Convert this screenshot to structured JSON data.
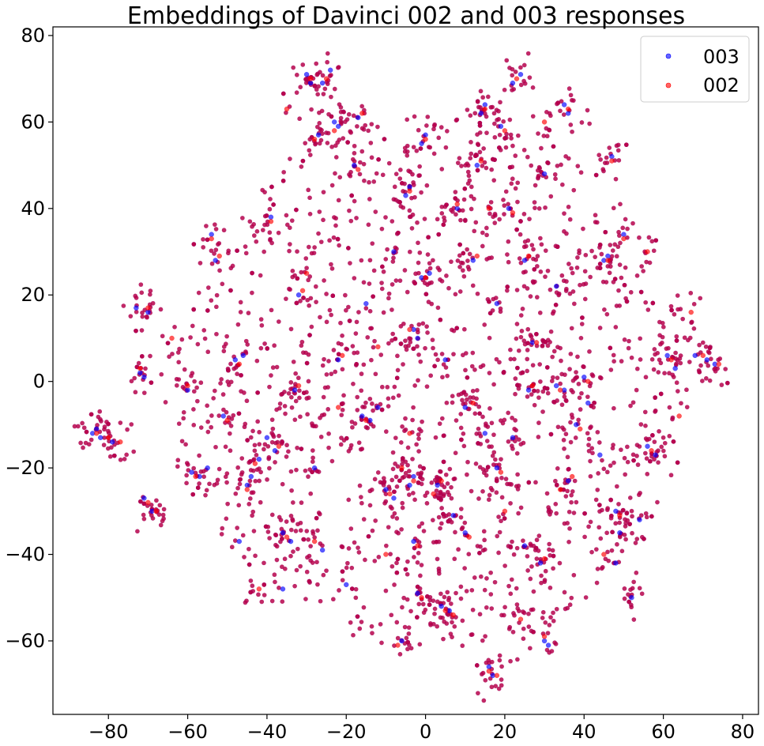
{
  "chart_data": {
    "type": "scatter",
    "title": "Embeddings of Davinci 002 and 003 responses",
    "xlabel": "",
    "ylabel": "",
    "xlim": [
      -94,
      84
    ],
    "ylim": [
      -77,
      82
    ],
    "xticks": [
      -80,
      -60,
      -40,
      -20,
      0,
      20,
      40,
      60,
      80
    ],
    "xtick_labels": [
      "−80",
      "−60",
      "−40",
      "−20",
      "0",
      "20",
      "40",
      "60",
      "80"
    ],
    "yticks": [
      -60,
      -40,
      -20,
      0,
      20,
      40,
      60,
      80
    ],
    "ytick_labels": [
      "−60",
      "−40",
      "−20",
      "0",
      "20",
      "40",
      "60",
      "80"
    ],
    "grid": false,
    "legend_placement": "top-right",
    "series": [
      {
        "name": "003",
        "color": "#0000ff",
        "points": [
          [
            -84,
            -12
          ],
          [
            -83,
            -11
          ],
          [
            -82,
            -13
          ],
          [
            -79,
            -14
          ],
          [
            -72,
            2
          ],
          [
            -71,
            1
          ],
          [
            -73,
            17
          ],
          [
            -70,
            16
          ],
          [
            -71,
            -27
          ],
          [
            -69,
            -30
          ],
          [
            -59,
            -21
          ],
          [
            -57,
            -22
          ],
          [
            -54,
            34
          ],
          [
            -53,
            28
          ],
          [
            -51,
            -8
          ],
          [
            -48,
            5
          ],
          [
            -46,
            6
          ],
          [
            -45,
            -24
          ],
          [
            -44,
            -22
          ],
          [
            -42,
            -18
          ],
          [
            -40,
            -13
          ],
          [
            -39,
            38
          ],
          [
            -38,
            -16
          ],
          [
            -36,
            -35
          ],
          [
            -34,
            -37
          ],
          [
            -33,
            -2
          ],
          [
            -32,
            20
          ],
          [
            -30,
            71
          ],
          [
            -29,
            69
          ],
          [
            -27,
            57
          ],
          [
            -26,
            69
          ],
          [
            -24,
            72
          ],
          [
            -23,
            60
          ],
          [
            -22,
            59
          ],
          [
            -22,
            5
          ],
          [
            -18,
            50
          ],
          [
            -17,
            61
          ],
          [
            -16,
            -8
          ],
          [
            -14,
            -9
          ],
          [
            -10,
            -25
          ],
          [
            -8,
            -27
          ],
          [
            -6,
            -60
          ],
          [
            -5,
            43
          ],
          [
            -4,
            45
          ],
          [
            -4,
            -24
          ],
          [
            -3,
            -22
          ],
          [
            -3,
            12
          ],
          [
            -2,
            10
          ],
          [
            -1,
            55
          ],
          [
            0,
            57
          ],
          [
            -1,
            24
          ],
          [
            1,
            25
          ],
          [
            -2,
            -49
          ],
          [
            -3,
            -37
          ],
          [
            3,
            -24
          ],
          [
            4,
            -52
          ],
          [
            6,
            -53
          ],
          [
            8,
            40
          ],
          [
            10,
            -35
          ],
          [
            12,
            28
          ],
          [
            13,
            50
          ],
          [
            14,
            62
          ],
          [
            15,
            64
          ],
          [
            16,
            -66
          ],
          [
            17,
            -68
          ],
          [
            18,
            -20
          ],
          [
            19,
            59
          ],
          [
            21,
            40
          ],
          [
            22,
            69
          ],
          [
            24,
            71
          ],
          [
            25,
            28
          ],
          [
            26,
            -2
          ],
          [
            27,
            9
          ],
          [
            29,
            -42
          ],
          [
            30,
            -60
          ],
          [
            31,
            -61
          ],
          [
            33,
            -1
          ],
          [
            35,
            -2
          ],
          [
            35,
            64
          ],
          [
            36,
            62
          ],
          [
            36,
            -23
          ],
          [
            38,
            -10
          ],
          [
            40,
            1
          ],
          [
            41,
            -5
          ],
          [
            45,
            28
          ],
          [
            46,
            29
          ],
          [
            47,
            52
          ],
          [
            48,
            -30
          ],
          [
            49,
            -35
          ],
          [
            50,
            34
          ],
          [
            56,
            -15
          ],
          [
            58,
            -17
          ],
          [
            61,
            6
          ],
          [
            63,
            3
          ],
          [
            68,
            6
          ],
          [
            71,
            5
          ],
          [
            73,
            4
          ],
          [
            -55,
            -20
          ],
          [
            -47,
            -37
          ],
          [
            -26,
            -39
          ],
          [
            -12,
            -6
          ],
          [
            7,
            -31
          ],
          [
            15,
            -12
          ],
          [
            22,
            -13
          ],
          [
            44,
            -17
          ],
          [
            52,
            -50
          ],
          [
            54,
            -32
          ],
          [
            33,
            22
          ],
          [
            18,
            18
          ],
          [
            -36,
            -48
          ],
          [
            -20,
            -47
          ],
          [
            30,
            48
          ],
          [
            5,
            5
          ],
          [
            -8,
            30
          ],
          [
            -28,
            -20
          ],
          [
            25,
            -38
          ],
          [
            10,
            -6
          ],
          [
            -15,
            18
          ],
          [
            48,
            -42
          ],
          [
            -60,
            -2
          ]
        ]
      },
      {
        "name": "002",
        "color": "#ff0000",
        "points": [
          [
            -83,
            -12
          ],
          [
            -80,
            -13
          ],
          [
            -77,
            -14
          ],
          [
            -72,
            3
          ],
          [
            -70,
            17
          ],
          [
            -70,
            -28
          ],
          [
            -68,
            -30
          ],
          [
            -60,
            -1
          ],
          [
            -58,
            -22
          ],
          [
            -54,
            33
          ],
          [
            -52,
            29
          ],
          [
            -50,
            -9
          ],
          [
            -47,
            4
          ],
          [
            -45,
            -25
          ],
          [
            -43,
            -19
          ],
          [
            -39,
            37
          ],
          [
            -37,
            -15
          ],
          [
            -35,
            -36
          ],
          [
            -32,
            -1
          ],
          [
            -31,
            21
          ],
          [
            -29,
            70
          ],
          [
            -28,
            56
          ],
          [
            -25,
            70
          ],
          [
            -23,
            58
          ],
          [
            -21,
            6
          ],
          [
            -17,
            49
          ],
          [
            -16,
            62
          ],
          [
            -15,
            -9
          ],
          [
            -9,
            -26
          ],
          [
            -7,
            -61
          ],
          [
            -4,
            44
          ],
          [
            -3,
            -23
          ],
          [
            -4,
            12
          ],
          [
            0,
            56
          ],
          [
            0,
            24
          ],
          [
            -1,
            -50
          ],
          [
            -2,
            -38
          ],
          [
            4,
            -23
          ],
          [
            5,
            -53
          ],
          [
            8,
            41
          ],
          [
            11,
            -36
          ],
          [
            13,
            29
          ],
          [
            14,
            51
          ],
          [
            15,
            63
          ],
          [
            16,
            -67
          ],
          [
            18,
            -68
          ],
          [
            19,
            -21
          ],
          [
            20,
            58
          ],
          [
            22,
            39
          ],
          [
            23,
            70
          ],
          [
            26,
            29
          ],
          [
            27,
            -1
          ],
          [
            28,
            9
          ],
          [
            30,
            -41
          ],
          [
            30,
            -59
          ],
          [
            34,
            -2
          ],
          [
            36,
            63
          ],
          [
            37,
            -22
          ],
          [
            39,
            -11
          ],
          [
            41,
            0
          ],
          [
            46,
            28
          ],
          [
            47,
            51
          ],
          [
            49,
            -31
          ],
          [
            50,
            33
          ],
          [
            57,
            -16
          ],
          [
            62,
            5
          ],
          [
            67,
            16
          ],
          [
            70,
            6
          ],
          [
            74,
            4
          ],
          [
            -28,
            -37
          ],
          [
            -6,
            -20
          ],
          [
            7,
            -54
          ],
          [
            16,
            40
          ],
          [
            -4,
            -12
          ],
          [
            2,
            -26
          ],
          [
            34,
            -25
          ],
          [
            12,
            -5
          ],
          [
            -22,
            -6
          ],
          [
            45,
            -40
          ],
          [
            24,
            -55
          ],
          [
            -42,
            -48
          ],
          [
            -12,
            8
          ],
          [
            30,
            60
          ],
          [
            -35,
            63
          ],
          [
            56,
            30
          ],
          [
            64,
            -8
          ],
          [
            -64,
            10
          ],
          [
            -10,
            -40
          ],
          [
            20,
            -30
          ],
          [
            -30,
            25
          ]
        ]
      }
    ]
  }
}
